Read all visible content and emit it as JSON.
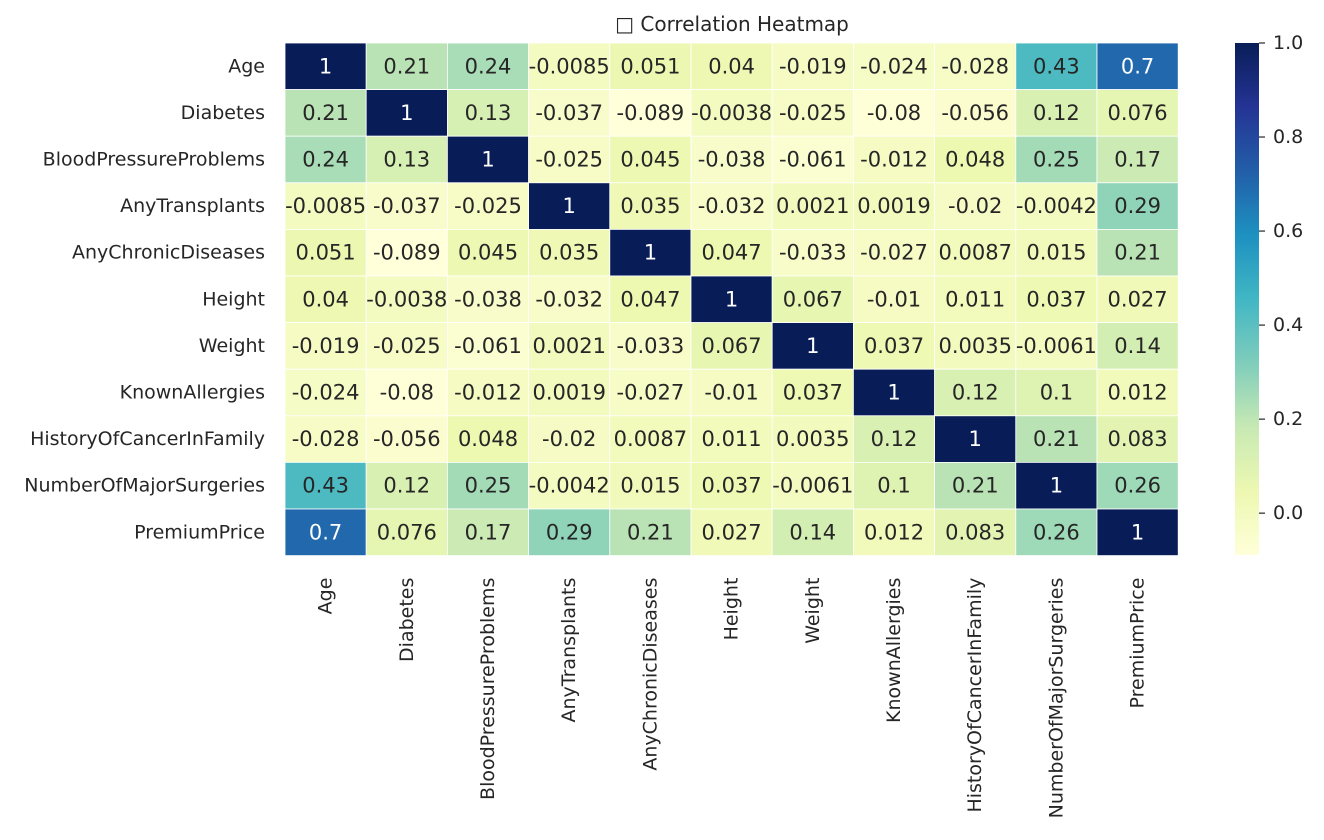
{
  "chart_data": {
    "type": "heatmap",
    "title": "□ Correlation Heatmap",
    "labels": [
      "Age",
      "Diabetes",
      "BloodPressureProblems",
      "AnyTransplants",
      "AnyChronicDiseases",
      "Height",
      "Weight",
      "KnownAllergies",
      "HistoryOfCancerInFamily",
      "NumberOfMajorSurgeries",
      "PremiumPrice"
    ],
    "matrix": [
      [
        1,
        0.21,
        0.24,
        -0.0085,
        0.051,
        0.04,
        -0.019,
        -0.024,
        -0.028,
        0.43,
        0.7
      ],
      [
        0.21,
        1,
        0.13,
        -0.037,
        -0.089,
        -0.0038,
        -0.025,
        -0.08,
        -0.056,
        0.12,
        0.076
      ],
      [
        0.24,
        0.13,
        1,
        -0.025,
        0.045,
        -0.038,
        -0.061,
        -0.012,
        0.048,
        0.25,
        0.17
      ],
      [
        -0.0085,
        -0.037,
        -0.025,
        1,
        0.035,
        -0.032,
        0.0021,
        0.0019,
        -0.02,
        -0.0042,
        0.29
      ],
      [
        0.051,
        -0.089,
        0.045,
        0.035,
        1,
        0.047,
        -0.033,
        -0.027,
        0.0087,
        0.015,
        0.21
      ],
      [
        0.04,
        -0.0038,
        -0.038,
        -0.032,
        0.047,
        1,
        0.067,
        -0.01,
        0.011,
        0.037,
        0.027
      ],
      [
        -0.019,
        -0.025,
        -0.061,
        0.0021,
        -0.033,
        0.067,
        1,
        0.037,
        0.0035,
        -0.0061,
        0.14
      ],
      [
        -0.024,
        -0.08,
        -0.012,
        0.0019,
        -0.027,
        -0.01,
        0.037,
        1,
        0.12,
        0.1,
        0.012
      ],
      [
        -0.028,
        -0.056,
        0.048,
        -0.02,
        0.0087,
        0.011,
        0.0035,
        0.12,
        1,
        0.21,
        0.083
      ],
      [
        0.43,
        0.12,
        0.25,
        -0.0042,
        0.015,
        0.037,
        -0.0061,
        0.1,
        0.21,
        1,
        0.26
      ],
      [
        0.7,
        0.076,
        0.17,
        0.29,
        0.21,
        0.027,
        0.14,
        0.012,
        0.083,
        0.26,
        1
      ]
    ],
    "colorscale": "YlGnBu",
    "vmin": -0.089,
    "vmax": 1,
    "colorbar": {
      "ticks": [
        0.0,
        0.2,
        0.4,
        0.6,
        0.8,
        1.0
      ],
      "tick_labels": [
        "0.0",
        "0.2",
        "0.4",
        "0.6",
        "0.8",
        "1.0"
      ]
    },
    "annotations": true,
    "colors": {
      "ylgnbu": [
        "#ffffd9",
        "#edf8b1",
        "#c7e9b4",
        "#7fcdbb",
        "#41b6c4",
        "#1d91c0",
        "#225ea8",
        "#253494",
        "#081d58"
      ],
      "cell_border": "#ffffff",
      "text_dark": "#262626",
      "text_light": "#ffffff"
    }
  }
}
